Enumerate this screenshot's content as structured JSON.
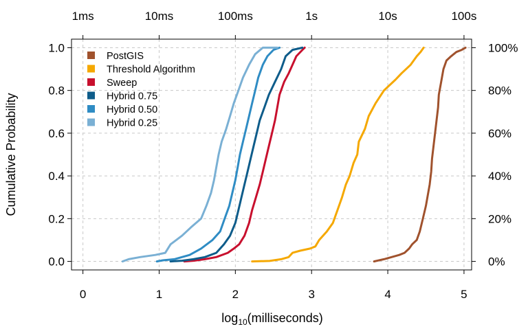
{
  "chart_data": {
    "type": "line",
    "xlabel": {
      "base": "log",
      "sub": "10",
      "rest": "(milliseconds)"
    },
    "ylabel": "Cumulative Probability",
    "xlim": [
      -0.15,
      5.1
    ],
    "ylim": [
      -0.04,
      1.04
    ],
    "x_ticks": [
      0,
      1,
      2,
      3,
      4,
      5
    ],
    "x_tick_labels": [
      "0",
      "1",
      "2",
      "3",
      "4",
      "5"
    ],
    "y_ticks": [
      0.0,
      0.2,
      0.4,
      0.6,
      0.8,
      1.0
    ],
    "y_tick_labels": [
      "0.0",
      "0.2",
      "0.4",
      "0.6",
      "0.8",
      "1.0"
    ],
    "top_axis": {
      "ticks": [
        0,
        1,
        2,
        3,
        4,
        5
      ],
      "labels": [
        "1ms",
        "10ms",
        "100ms",
        "1s",
        "10s",
        "100s"
      ]
    },
    "right_axis": {
      "ticks": [
        0.0,
        0.2,
        0.4,
        0.6,
        0.8,
        1.0
      ],
      "labels": [
        "0%",
        "20%",
        "40%",
        "60%",
        "80%",
        "100%"
      ]
    },
    "grid": true,
    "legend_position": "top-left",
    "series": [
      {
        "name": "PostGIS",
        "color": "#A0522D",
        "points": [
          [
            3.82,
            0.0
          ],
          [
            3.95,
            0.01
          ],
          [
            4.05,
            0.02
          ],
          [
            4.15,
            0.03
          ],
          [
            4.22,
            0.04
          ],
          [
            4.28,
            0.06
          ],
          [
            4.32,
            0.08
          ],
          [
            4.38,
            0.1
          ],
          [
            4.42,
            0.14
          ],
          [
            4.46,
            0.2
          ],
          [
            4.5,
            0.26
          ],
          [
            4.52,
            0.3
          ],
          [
            4.55,
            0.36
          ],
          [
            4.57,
            0.42
          ],
          [
            4.58,
            0.48
          ],
          [
            4.6,
            0.54
          ],
          [
            4.62,
            0.6
          ],
          [
            4.64,
            0.66
          ],
          [
            4.66,
            0.72
          ],
          [
            4.67,
            0.78
          ],
          [
            4.7,
            0.84
          ],
          [
            4.73,
            0.9
          ],
          [
            4.77,
            0.94
          ],
          [
            4.83,
            0.96
          ],
          [
            4.9,
            0.98
          ],
          [
            4.97,
            0.99
          ],
          [
            5.02,
            1.0
          ]
        ]
      },
      {
        "name": "Threshold Algorithm",
        "color": "#F5A800",
        "points": [
          [
            2.22,
            0.0
          ],
          [
            2.45,
            0.002
          ],
          [
            2.6,
            0.01
          ],
          [
            2.7,
            0.02
          ],
          [
            2.75,
            0.04
          ],
          [
            2.85,
            0.05
          ],
          [
            2.98,
            0.06
          ],
          [
            3.05,
            0.07
          ],
          [
            3.1,
            0.1
          ],
          [
            3.2,
            0.14
          ],
          [
            3.28,
            0.18
          ],
          [
            3.34,
            0.24
          ],
          [
            3.4,
            0.3
          ],
          [
            3.45,
            0.36
          ],
          [
            3.5,
            0.4
          ],
          [
            3.55,
            0.46
          ],
          [
            3.6,
            0.5
          ],
          [
            3.62,
            0.56
          ],
          [
            3.7,
            0.62
          ],
          [
            3.75,
            0.68
          ],
          [
            3.84,
            0.74
          ],
          [
            3.95,
            0.8
          ],
          [
            4.1,
            0.85
          ],
          [
            4.18,
            0.88
          ],
          [
            4.3,
            0.92
          ],
          [
            4.38,
            0.96
          ],
          [
            4.43,
            0.98
          ],
          [
            4.47,
            1.0
          ]
        ]
      },
      {
        "name": "Sweep",
        "color": "#C8102E",
        "points": [
          [
            1.33,
            0.0
          ],
          [
            1.45,
            0.003
          ],
          [
            1.6,
            0.01
          ],
          [
            1.75,
            0.02
          ],
          [
            1.9,
            0.04
          ],
          [
            1.98,
            0.06
          ],
          [
            2.05,
            0.08
          ],
          [
            2.12,
            0.12
          ],
          [
            2.18,
            0.18
          ],
          [
            2.22,
            0.24
          ],
          [
            2.27,
            0.3
          ],
          [
            2.32,
            0.36
          ],
          [
            2.36,
            0.42
          ],
          [
            2.4,
            0.48
          ],
          [
            2.44,
            0.54
          ],
          [
            2.48,
            0.6
          ],
          [
            2.52,
            0.66
          ],
          [
            2.55,
            0.72
          ],
          [
            2.58,
            0.78
          ],
          [
            2.64,
            0.84
          ],
          [
            2.7,
            0.88
          ],
          [
            2.75,
            0.92
          ],
          [
            2.8,
            0.96
          ],
          [
            2.88,
            0.99
          ],
          [
            2.91,
            1.0
          ]
        ]
      },
      {
        "name": "Hybrid 0.75",
        "color": "#0E5C8A",
        "points": [
          [
            1.15,
            0.0
          ],
          [
            1.3,
            0.003
          ],
          [
            1.45,
            0.01
          ],
          [
            1.6,
            0.02
          ],
          [
            1.75,
            0.04
          ],
          [
            1.85,
            0.08
          ],
          [
            1.93,
            0.12
          ],
          [
            2.0,
            0.18
          ],
          [
            2.04,
            0.24
          ],
          [
            2.08,
            0.3
          ],
          [
            2.12,
            0.36
          ],
          [
            2.16,
            0.42
          ],
          [
            2.2,
            0.48
          ],
          [
            2.24,
            0.54
          ],
          [
            2.28,
            0.6
          ],
          [
            2.32,
            0.66
          ],
          [
            2.38,
            0.72
          ],
          [
            2.44,
            0.78
          ],
          [
            2.52,
            0.84
          ],
          [
            2.6,
            0.9
          ],
          [
            2.66,
            0.96
          ],
          [
            2.75,
            0.99
          ],
          [
            2.88,
            1.0
          ]
        ]
      },
      {
        "name": "Hybrid 0.50",
        "color": "#2F8CC4",
        "points": [
          [
            0.97,
            0.0
          ],
          [
            1.05,
            0.005
          ],
          [
            1.2,
            0.01
          ],
          [
            1.4,
            0.03
          ],
          [
            1.55,
            0.06
          ],
          [
            1.7,
            0.1
          ],
          [
            1.8,
            0.14
          ],
          [
            1.86,
            0.2
          ],
          [
            1.92,
            0.26
          ],
          [
            1.96,
            0.32
          ],
          [
            2.0,
            0.38
          ],
          [
            2.03,
            0.44
          ],
          [
            2.06,
            0.5
          ],
          [
            2.1,
            0.56
          ],
          [
            2.14,
            0.62
          ],
          [
            2.18,
            0.68
          ],
          [
            2.22,
            0.74
          ],
          [
            2.26,
            0.8
          ],
          [
            2.3,
            0.86
          ],
          [
            2.36,
            0.92
          ],
          [
            2.42,
            0.96
          ],
          [
            2.5,
            0.99
          ],
          [
            2.58,
            1.0
          ]
        ]
      },
      {
        "name": "Hybrid 0.25",
        "color": "#7AB0D4",
        "points": [
          [
            0.52,
            0.0
          ],
          [
            0.6,
            0.01
          ],
          [
            0.75,
            0.02
          ],
          [
            0.95,
            0.03
          ],
          [
            1.08,
            0.04
          ],
          [
            1.15,
            0.08
          ],
          [
            1.3,
            0.12
          ],
          [
            1.42,
            0.16
          ],
          [
            1.55,
            0.2
          ],
          [
            1.62,
            0.26
          ],
          [
            1.68,
            0.32
          ],
          [
            1.72,
            0.38
          ],
          [
            1.75,
            0.44
          ],
          [
            1.78,
            0.5
          ],
          [
            1.82,
            0.56
          ],
          [
            1.88,
            0.62
          ],
          [
            1.93,
            0.68
          ],
          [
            1.98,
            0.74
          ],
          [
            2.04,
            0.8
          ],
          [
            2.1,
            0.86
          ],
          [
            2.18,
            0.92
          ],
          [
            2.26,
            0.97
          ],
          [
            2.36,
            1.0
          ],
          [
            2.55,
            1.0
          ]
        ]
      }
    ]
  }
}
